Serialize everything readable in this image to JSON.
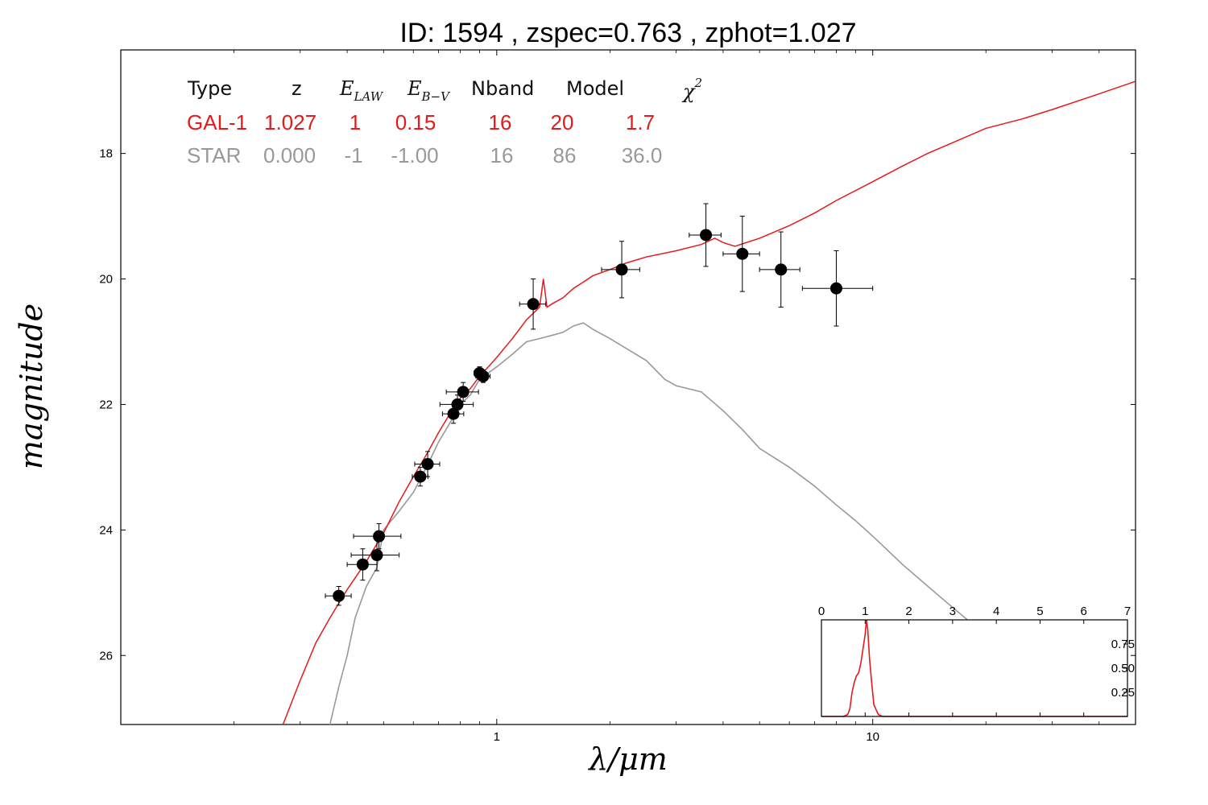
{
  "title": "ID:  1594  , zspec=0.763 , zphot=1.027",
  "table": {
    "headers": [
      "Type",
      "z",
      "E",
      "LAW",
      "E",
      "B−V",
      "Nband",
      "Model",
      "χ",
      "2"
    ],
    "rows": [
      {
        "color": "#e41a1c",
        "cells": [
          "GAL-1",
          "1.027",
          "1",
          "0.15",
          "16",
          "20",
          "1.7"
        ]
      },
      {
        "color": "#999999",
        "cells": [
          "STAR",
          "0.000",
          "-1",
          "-1.00",
          "16",
          "86",
          "36.0"
        ]
      }
    ]
  },
  "chart_data": [
    {
      "type": "scatter",
      "title": "ID:  1594  , zspec=0.763 , zphot=1.027",
      "xlabel": "λ/μm",
      "ylabel": "magnitude",
      "xscale": "log",
      "xlim": [
        0.1,
        50
      ],
      "ylim": [
        27.1,
        16.35
      ],
      "y_inverted": true,
      "x_ticks": [
        1,
        10
      ],
      "x_tick_labels": [
        "1",
        "10"
      ],
      "y_ticks": [
        18,
        20,
        22,
        24,
        26
      ],
      "y_tick_labels": [
        "18",
        "20",
        "22",
        "24",
        "26"
      ],
      "grid": false,
      "points": [
        {
          "x": 0.38,
          "y": 25.05,
          "xerr": [
            0.03,
            0.03
          ],
          "yerr": 0.15
        },
        {
          "x": 0.44,
          "y": 24.55,
          "xerr": [
            0.04,
            0.04
          ],
          "yerr": 0.25
        },
        {
          "x": 0.48,
          "y": 24.4,
          "xerr": [
            0.07,
            0.07
          ],
          "yerr": 0.25
        },
        {
          "x": 0.486,
          "y": 24.1,
          "xerr": [
            0.07,
            0.07
          ],
          "yerr": 0.2
        },
        {
          "x": 0.626,
          "y": 23.15,
          "xerr": [
            0.03,
            0.03
          ],
          "yerr": 0.15
        },
        {
          "x": 0.655,
          "y": 22.95,
          "xerr": [
            0.05,
            0.05
          ],
          "yerr": 0.2
        },
        {
          "x": 0.767,
          "y": 22.15,
          "xerr": [
            0.05,
            0.05
          ],
          "yerr": 0.15
        },
        {
          "x": 0.786,
          "y": 22.0,
          "xerr": [
            0.08,
            0.08
          ],
          "yerr": 0.15
        },
        {
          "x": 0.814,
          "y": 21.8,
          "xerr": [
            0.08,
            0.08
          ],
          "yerr": 0.15
        },
        {
          "x": 0.9,
          "y": 21.5,
          "xerr": [
            0.03,
            0.03
          ],
          "yerr": 0.1
        },
        {
          "x": 0.92,
          "y": 21.55,
          "xerr": [
            0.04,
            0.04
          ],
          "yerr": 0.1
        },
        {
          "x": 1.25,
          "y": 20.4,
          "xerr": [
            0.1,
            0.1
          ],
          "yerr": 0.4
        },
        {
          "x": 2.15,
          "y": 19.85,
          "xerr": [
            0.25,
            0.25
          ],
          "yerr": 0.45
        },
        {
          "x": 3.6,
          "y": 19.3,
          "xerr": [
            0.35,
            0.35
          ],
          "yerr": 0.5
        },
        {
          "x": 4.5,
          "y": 19.6,
          "xerr": [
            0.5,
            0.5
          ],
          "yerr": 0.6
        },
        {
          "x": 5.7,
          "y": 19.85,
          "xerr": [
            0.7,
            0.7
          ],
          "yerr": 0.6
        },
        {
          "x": 8.0,
          "y": 20.15,
          "xerr": [
            1.5,
            2.0
          ],
          "yerr": 0.6
        }
      ],
      "series": [
        {
          "name": "GAL-1",
          "color": "#e41a1c",
          "type": "line",
          "x": [
            0.27,
            0.3,
            0.33,
            0.36,
            0.4,
            0.45,
            0.5,
            0.55,
            0.6,
            0.65,
            0.7,
            0.75,
            0.8,
            0.85,
            0.9,
            0.95,
            1.0,
            1.1,
            1.2,
            1.3,
            1.33,
            1.36,
            1.4,
            1.5,
            1.6,
            1.7,
            1.8,
            2.0,
            2.2,
            2.5,
            3.0,
            3.5,
            3.8,
            4.0,
            4.3,
            5.0,
            6.0,
            7.0,
            8.0,
            10.0,
            12.0,
            14.0,
            16.0,
            20.0,
            25.0,
            30.0,
            40.0,
            50.0
          ],
          "y": [
            27.1,
            26.4,
            25.8,
            25.4,
            24.95,
            24.5,
            24.05,
            23.55,
            23.15,
            22.8,
            22.45,
            22.15,
            21.9,
            21.75,
            21.55,
            21.4,
            21.25,
            20.95,
            20.65,
            20.45,
            20.0,
            20.45,
            20.4,
            20.3,
            20.15,
            20.05,
            19.95,
            19.85,
            19.75,
            19.65,
            19.55,
            19.45,
            19.35,
            19.42,
            19.48,
            19.35,
            19.15,
            18.95,
            18.75,
            18.45,
            18.2,
            18.0,
            17.85,
            17.6,
            17.45,
            17.3,
            17.05,
            16.85
          ]
        },
        {
          "name": "STAR",
          "color": "#999999",
          "type": "line",
          "x": [
            0.36,
            0.38,
            0.4,
            0.42,
            0.45,
            0.48,
            0.5,
            0.55,
            0.6,
            0.65,
            0.7,
            0.75,
            0.8,
            0.85,
            0.9,
            1.0,
            1.1,
            1.2,
            1.3,
            1.4,
            1.5,
            1.6,
            1.7,
            1.8,
            2.0,
            2.2,
            2.5,
            2.8,
            3.0,
            3.5,
            4.0,
            4.5,
            5.0,
            6.0,
            7.0,
            8.0,
            9.0,
            10.0,
            12.0,
            15.0,
            18.0,
            22.0
          ],
          "y": [
            27.1,
            26.5,
            26.0,
            25.4,
            24.9,
            24.6,
            24.0,
            23.7,
            23.4,
            23.0,
            22.6,
            22.3,
            22.0,
            21.85,
            21.6,
            21.4,
            21.2,
            21.0,
            20.95,
            20.9,
            20.85,
            20.75,
            20.7,
            20.8,
            20.95,
            21.1,
            21.3,
            21.6,
            21.7,
            21.8,
            22.1,
            22.4,
            22.7,
            23.0,
            23.3,
            23.6,
            23.85,
            24.1,
            24.55,
            25.05,
            25.45,
            25.9
          ]
        }
      ]
    },
    {
      "type": "line",
      "title": "",
      "xlim": [
        0,
        7
      ],
      "ylim": [
        0,
        1.0
      ],
      "x_ticks": [
        0,
        1,
        2,
        3,
        4,
        5,
        6,
        7
      ],
      "x_tick_labels": [
        "0",
        "1",
        "2",
        "3",
        "4",
        "5",
        "6",
        "7"
      ],
      "y_ticks": [
        0.25,
        0.5,
        0.75
      ],
      "y_tick_labels": [
        "0.25",
        "0.50",
        "0.75"
      ],
      "series": [
        {
          "name": "",
          "color": "#e41a1c",
          "x": [
            0,
            0.5,
            0.6,
            0.65,
            0.7,
            0.75,
            0.8,
            0.85,
            0.9,
            0.95,
            1.0,
            1.03,
            1.06,
            1.1,
            1.15,
            1.2,
            1.3,
            1.4,
            2.0,
            7.0
          ],
          "y": [
            0,
            0,
            0.02,
            0.08,
            0.25,
            0.35,
            0.42,
            0.45,
            0.55,
            0.7,
            0.85,
            1.0,
            0.9,
            0.6,
            0.35,
            0.12,
            0.02,
            0,
            0,
            0
          ]
        }
      ]
    }
  ]
}
